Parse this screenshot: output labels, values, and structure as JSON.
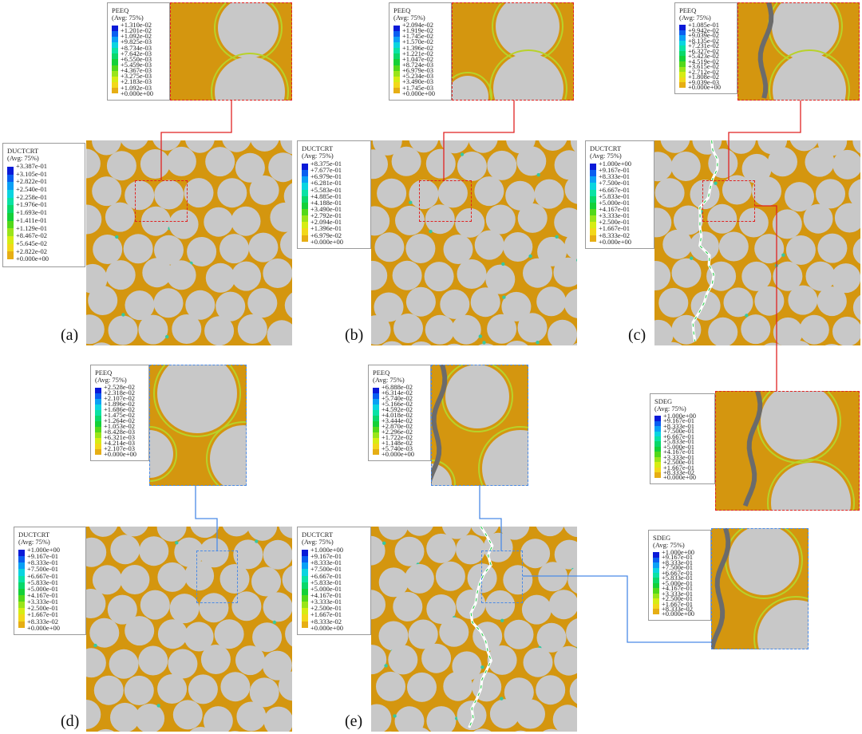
{
  "panels": [
    "(a)",
    "(b)",
    "(c)",
    "(d)",
    "(e)"
  ],
  "colors": {
    "matrix": "#d4960f",
    "fiber": "#c8c8c8",
    "crack": "#6b6b6b",
    "red": "#e02222",
    "blue": "#4a8ae6"
  },
  "legends": {
    "a_peeq": {
      "name": "PEEQ",
      "avg": "(Avg: 75%)",
      "values": [
        "+1.310e-02",
        "+1.201e-02",
        "+1.092e-02",
        "+9.825e-03",
        "+8.734e-03",
        "+7.642e-03",
        "+6.550e-03",
        "+5.459e-03",
        "+4.367e-03",
        "+3.275e-03",
        "+2.183e-03",
        "+1.092e-03",
        "+0.000e+00"
      ]
    },
    "a_duct": {
      "name": "DUCTCRT",
      "avg": "(Avg: 75%)",
      "values": [
        "+3.387e-01",
        "+3.105e-01",
        "+2.822e-01",
        "+2.540e-01",
        "+2.258e-01",
        "+1.976e-01",
        "+1.693e-01",
        "+1.411e-01",
        "+1.129e-01",
        "+8.467e-02",
        "+5.645e-02",
        "+2.822e-02",
        "+0.000e+00"
      ]
    },
    "b_peeq": {
      "name": "PEEQ",
      "avg": "(Avg: 75%)",
      "values": [
        "+2.094e-02",
        "+1.919e-02",
        "+1.745e-02",
        "+1.570e-02",
        "+1.396e-02",
        "+1.221e-02",
        "+1.047e-02",
        "+8.724e-03",
        "+6.979e-03",
        "+5.234e-03",
        "+3.490e-03",
        "+1.745e-03",
        "+0.000e+00"
      ]
    },
    "b_duct": {
      "name": "DUCTCRT",
      "avg": "(Avg: 75%)",
      "values": [
        "+8.375e-01",
        "+7.677e-01",
        "+6.979e-01",
        "+6.281e-01",
        "+5.583e-01",
        "+4.885e-01",
        "+4.188e-01",
        "+3.490e-01",
        "+2.792e-01",
        "+2.094e-01",
        "+1.396e-01",
        "+6.979e-02",
        "+0.000e+00"
      ]
    },
    "c_peeq": {
      "name": "PEEQ",
      "avg": "(Avg: 75%)",
      "values": [
        "+1.085e-01",
        "+9.942e-02",
        "+9.039e-02",
        "+8.135e-02",
        "+7.231e-02",
        "+6.327e-02",
        "+5.423e-02",
        "+4.519e-02",
        "+3.615e-02",
        "+2.712e-02",
        "+1.808e-02",
        "+9.039e-03",
        "+0.000e+00"
      ]
    },
    "c_duct": {
      "name": "DUCTCRT",
      "avg": "(Avg: 75%)",
      "values": [
        "+1.000e+00",
        "+9.167e-01",
        "+8.333e-01",
        "+7.500e-01",
        "+6.667e-01",
        "+5.833e-01",
        "+5.000e-01",
        "+4.167e-01",
        "+3.333e-01",
        "+2.500e-01",
        "+1.667e-01",
        "+8.333e-02",
        "+0.000e+00"
      ]
    },
    "c_sdeg": {
      "name": "SDEG",
      "avg": "(Avg: 75%)",
      "values": [
        "+1.000e+00",
        "+9.167e-01",
        "+8.333e-01",
        "+7.500e-01",
        "+6.667e-01",
        "+5.833e-01",
        "+5.000e-01",
        "+4.167e-01",
        "+3.333e-01",
        "+2.500e-01",
        "+1.667e-01",
        "+8.333e-02",
        "+0.000e+00"
      ]
    },
    "d_peeq": {
      "name": "PEEQ",
      "avg": "(Avg: 75%)",
      "values": [
        "+2.528e-02",
        "+2.318e-02",
        "+2.107e-02",
        "+1.896e-02",
        "+1.686e-02",
        "+1.475e-02",
        "+1.264e-02",
        "+1.053e-02",
        "+8.428e-03",
        "+6.321e-03",
        "+4.214e-03",
        "+2.107e-03",
        "+0.000e+00"
      ]
    },
    "d_duct": {
      "name": "DUCTCRT",
      "avg": "(Avg: 75%)",
      "values": [
        "+1.000e+00",
        "+9.167e-01",
        "+8.333e-01",
        "+7.500e-01",
        "+6.667e-01",
        "+5.833e-01",
        "+5.000e-01",
        "+4.167e-01",
        "+3.333e-01",
        "+2.500e-01",
        "+1.667e-01",
        "+8.333e-02",
        "+0.000e+00"
      ]
    },
    "e_peeq": {
      "name": "PEEQ",
      "avg": "(Avg: 75%)",
      "values": [
        "+6.888e-02",
        "+6.314e-02",
        "+5.740e-02",
        "+5.166e-02",
        "+4.592e-02",
        "+4.018e-02",
        "+3.444e-02",
        "+2.870e-02",
        "+2.296e-02",
        "+1.722e-02",
        "+1.148e-02",
        "+5.740e-03",
        "+0.000e+00"
      ]
    },
    "e_duct": {
      "name": "DUCTCRT",
      "avg": "(Avg: 75%)",
      "values": [
        "+1.000e+00",
        "+9.167e-01",
        "+8.333e-01",
        "+7.500e-01",
        "+6.667e-01",
        "+5.833e-01",
        "+5.000e-01",
        "+4.167e-01",
        "+3.333e-01",
        "+2.500e-01",
        "+1.667e-01",
        "+8.333e-02",
        "+0.000e+00"
      ]
    },
    "e_sdeg": {
      "name": "SDEG",
      "avg": "(Avg: 75%)",
      "values": [
        "+1.000e+00",
        "+9.167e-01",
        "+8.333e-01",
        "+7.500e-01",
        "+6.667e-01",
        "+5.833e-01",
        "+5.000e-01",
        "+4.167e-01",
        "+3.333e-01",
        "+2.500e-01",
        "+1.667e-01",
        "+8.333e-02",
        "+0.000e+00"
      ]
    }
  }
}
